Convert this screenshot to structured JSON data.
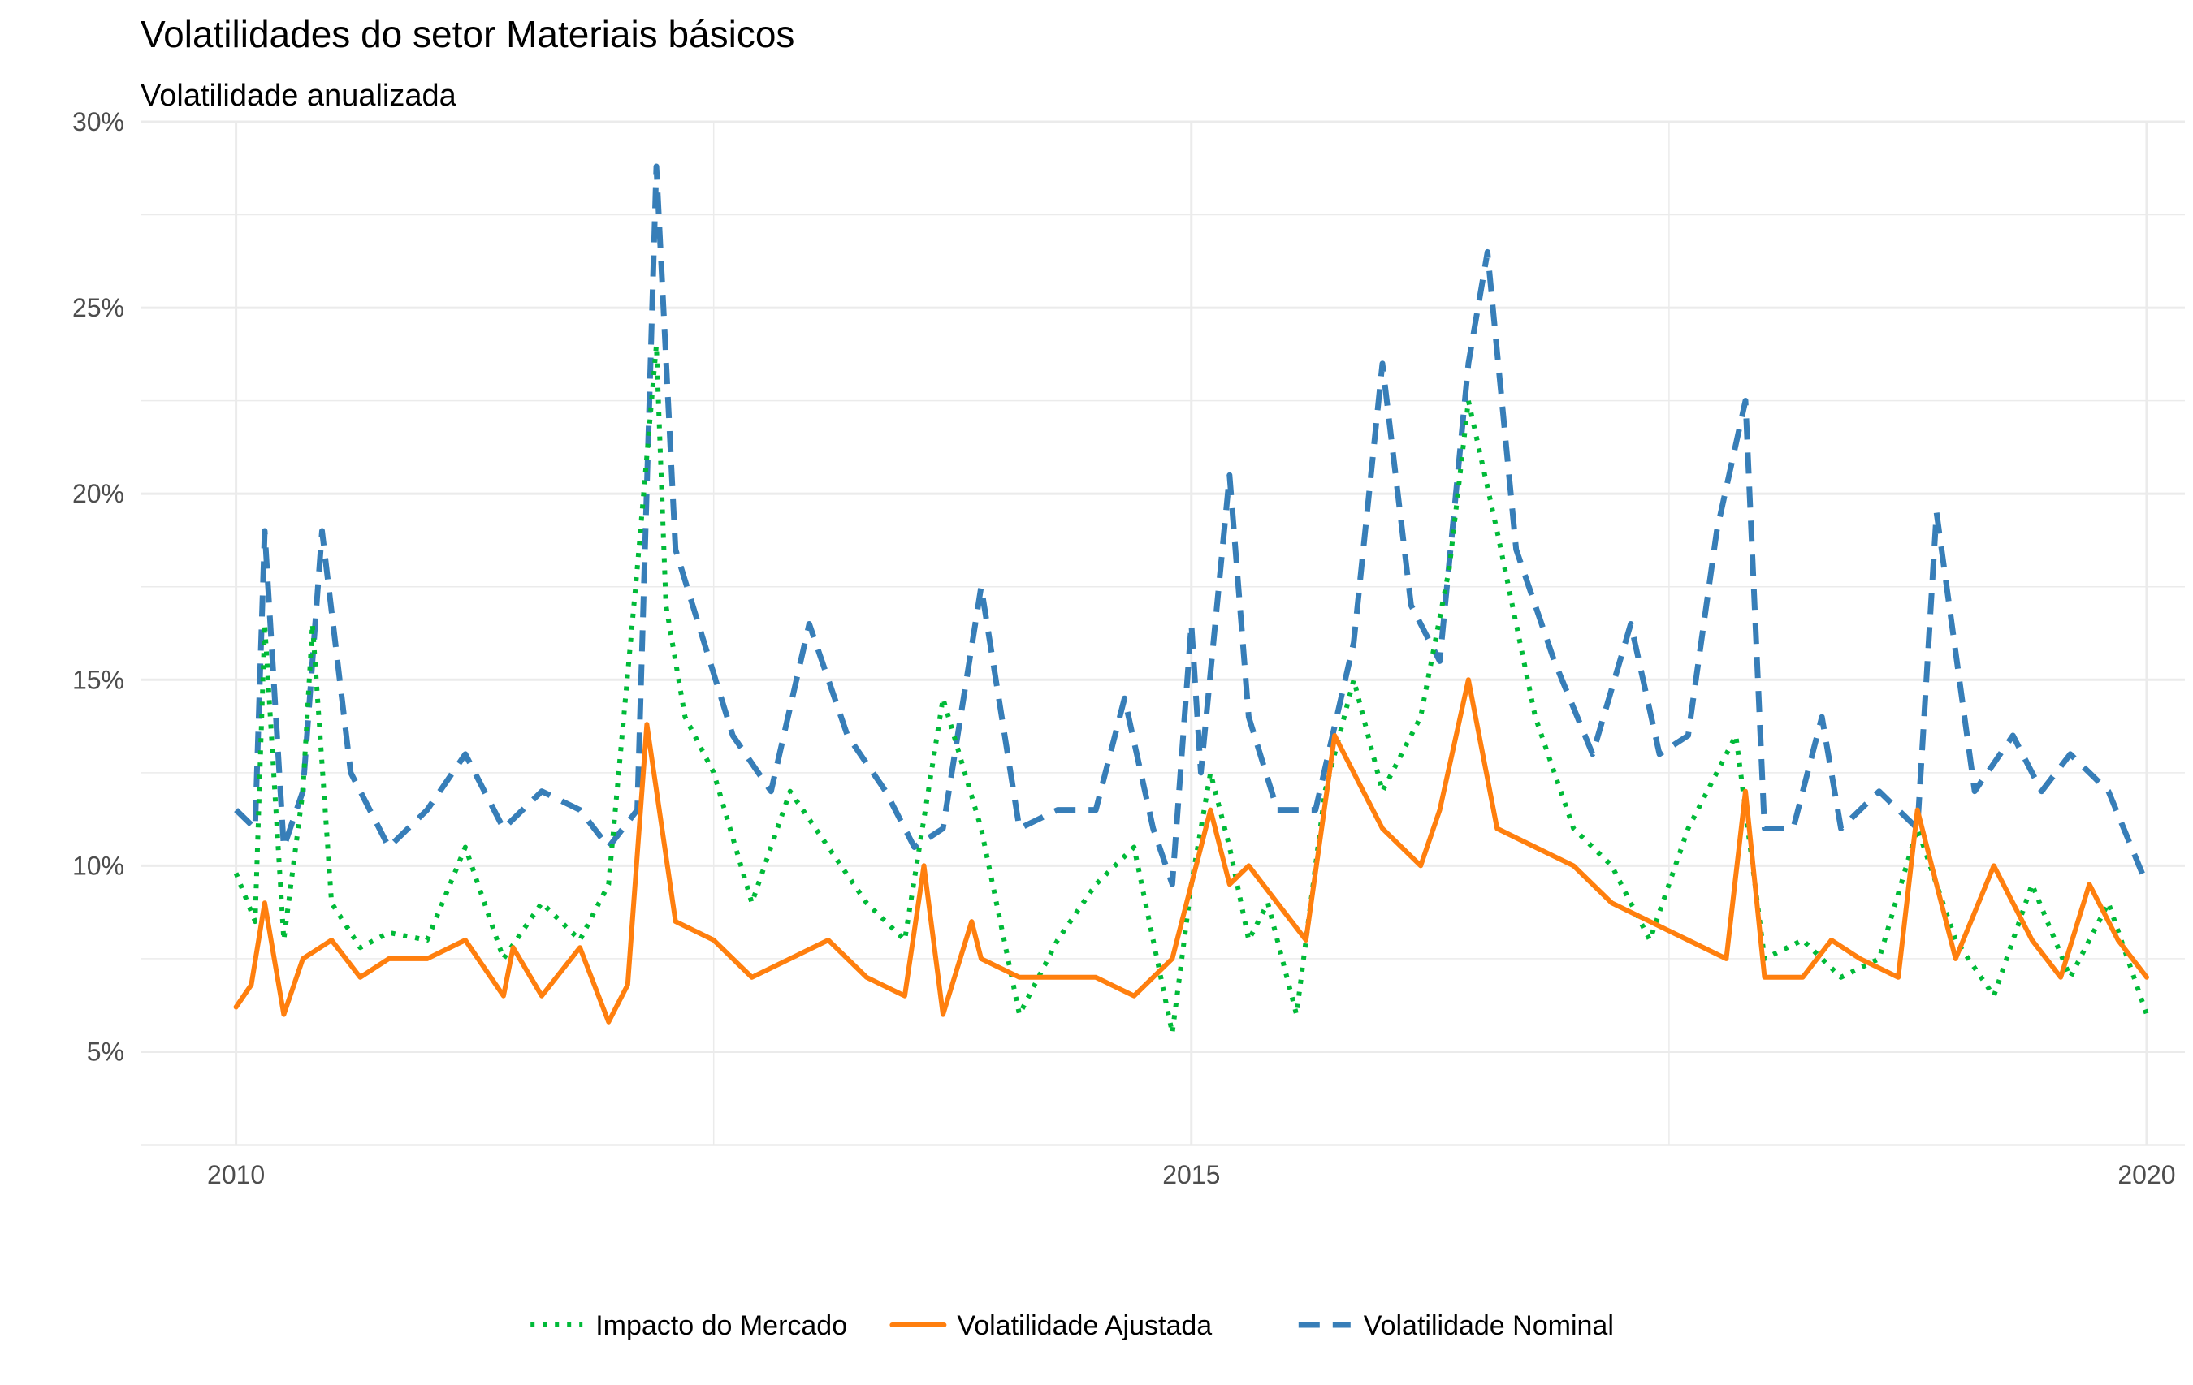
{
  "chart_data": {
    "type": "line",
    "title": "Volatilidades do setor Materiais básicos",
    "subtitle": "Volatilidade anualizada",
    "xlabel": "",
    "ylabel": "",
    "x_ticks": [
      "2010",
      "2015",
      "2020"
    ],
    "x_tick_values": [
      2010,
      2015,
      2020
    ],
    "xlim": [
      2009.5,
      2020.2
    ],
    "y_ticks": [
      "5%",
      "10%",
      "15%",
      "20%",
      "25%",
      "30%"
    ],
    "y_tick_values": [
      5,
      10,
      15,
      20,
      25,
      30
    ],
    "ylim": [
      2.5,
      30
    ],
    "grid": true,
    "legend_position": "bottom",
    "series": [
      {
        "name": "Impacto do Mercado",
        "color": "#00BA38",
        "style": "dotted",
        "x": [
          2010.0,
          2010.1,
          2010.15,
          2010.25,
          2010.35,
          2010.4,
          2010.5,
          2010.65,
          2010.8,
          2011.0,
          2011.2,
          2011.4,
          2011.6,
          2011.8,
          2011.95,
          2012.1,
          2012.2,
          2012.25,
          2012.35,
          2012.5,
          2012.7,
          2012.9,
          2013.1,
          2013.3,
          2013.5,
          2013.7,
          2013.9,
          2014.1,
          2014.3,
          2014.5,
          2014.7,
          2014.9,
          2015.0,
          2015.1,
          2015.2,
          2015.3,
          2015.4,
          2015.55,
          2015.7,
          2015.85,
          2016.0,
          2016.2,
          2016.35,
          2016.45,
          2016.6,
          2016.8,
          2017.0,
          2017.2,
          2017.4,
          2017.6,
          2017.85,
          2018.0,
          2018.2,
          2018.4,
          2018.6,
          2018.8,
          2019.0,
          2019.2,
          2019.4,
          2019.6,
          2019.8,
          2020.0
        ],
        "y": [
          9.8,
          8.5,
          16.5,
          8.0,
          12.0,
          16.5,
          9.0,
          7.8,
          8.2,
          8.0,
          10.5,
          7.5,
          9.0,
          8.0,
          9.5,
          18.0,
          24.0,
          17.0,
          14.0,
          12.5,
          9.0,
          12.0,
          10.5,
          9.0,
          8.0,
          14.5,
          11.0,
          6.0,
          8.0,
          9.5,
          10.5,
          5.5,
          9.5,
          12.5,
          10.5,
          8.0,
          9.0,
          6.0,
          12.0,
          15.0,
          12.0,
          14.0,
          18.0,
          22.5,
          19.0,
          14.0,
          11.0,
          10.0,
          8.0,
          11.0,
          13.5,
          7.5,
          8.0,
          7.0,
          7.5,
          11.0,
          8.0,
          6.5,
          9.5,
          7.0,
          9.0,
          6.0
        ]
      },
      {
        "name": "Volatilidade Ajustada",
        "color": "#FF7F0E",
        "style": "solid",
        "x": [
          2010.0,
          2010.08,
          2010.15,
          2010.25,
          2010.35,
          2010.5,
          2010.65,
          2010.8,
          2011.0,
          2011.2,
          2011.4,
          2011.45,
          2011.6,
          2011.8,
          2011.95,
          2012.05,
          2012.15,
          2012.3,
          2012.5,
          2012.7,
          2012.9,
          2013.1,
          2013.3,
          2013.5,
          2013.6,
          2013.7,
          2013.85,
          2013.9,
          2014.1,
          2014.3,
          2014.5,
          2014.7,
          2014.9,
          2015.0,
          2015.1,
          2015.2,
          2015.3,
          2015.45,
          2015.6,
          2015.75,
          2015.9,
          2016.0,
          2016.2,
          2016.3,
          2016.45,
          2016.6,
          2016.8,
          2017.0,
          2017.2,
          2017.4,
          2017.6,
          2017.8,
          2017.9,
          2018.0,
          2018.2,
          2018.35,
          2018.5,
          2018.7,
          2018.8,
          2019.0,
          2019.2,
          2019.4,
          2019.55,
          2019.7,
          2019.85,
          2020.0
        ],
        "y": [
          6.2,
          6.8,
          9.0,
          6.0,
          7.5,
          8.0,
          7.0,
          7.5,
          7.5,
          8.0,
          6.5,
          7.8,
          6.5,
          7.8,
          5.8,
          6.8,
          13.8,
          8.5,
          8.0,
          7.0,
          7.5,
          8.0,
          7.0,
          6.5,
          10.0,
          6.0,
          8.5,
          7.5,
          7.0,
          7.0,
          7.0,
          6.5,
          7.5,
          9.5,
          11.5,
          9.5,
          10.0,
          9.0,
          8.0,
          13.5,
          12.0,
          11.0,
          10.0,
          11.5,
          15.0,
          11.0,
          10.5,
          10.0,
          9.0,
          8.5,
          8.0,
          7.5,
          12.0,
          7.0,
          7.0,
          8.0,
          7.5,
          7.0,
          11.5,
          7.5,
          10.0,
          8.0,
          7.0,
          9.5,
          8.0,
          7.0
        ]
      },
      {
        "name": "Volatilidade Nominal",
        "color": "#377EB8",
        "style": "dashed",
        "x": [
          2010.0,
          2010.1,
          2010.15,
          2010.25,
          2010.35,
          2010.45,
          2010.6,
          2010.8,
          2011.0,
          2011.2,
          2011.4,
          2011.6,
          2011.8,
          2011.95,
          2012.1,
          2012.2,
          2012.3,
          2012.45,
          2012.6,
          2012.8,
          2013.0,
          2013.2,
          2013.4,
          2013.55,
          2013.7,
          2013.9,
          2014.1,
          2014.3,
          2014.5,
          2014.65,
          2014.8,
          2014.9,
          2015.0,
          2015.05,
          2015.2,
          2015.3,
          2015.45,
          2015.65,
          2015.85,
          2016.0,
          2016.15,
          2016.3,
          2016.45,
          2016.55,
          2016.7,
          2016.9,
          2017.1,
          2017.3,
          2017.45,
          2017.6,
          2017.75,
          2017.9,
          2018.0,
          2018.15,
          2018.3,
          2018.4,
          2018.6,
          2018.8,
          2018.9,
          2019.1,
          2019.3,
          2019.45,
          2019.6,
          2019.8,
          2020.0
        ],
        "y": [
          11.5,
          11.0,
          19.0,
          10.5,
          12.0,
          19.0,
          12.5,
          10.5,
          11.5,
          13.0,
          11.0,
          12.0,
          11.5,
          10.5,
          11.5,
          28.8,
          18.5,
          16.0,
          13.5,
          12.0,
          16.5,
          13.5,
          12.0,
          10.5,
          11.0,
          17.5,
          11.0,
          11.5,
          11.5,
          14.5,
          11.0,
          9.5,
          16.5,
          12.5,
          20.5,
          14.0,
          11.5,
          11.5,
          16.0,
          23.5,
          17.0,
          15.5,
          23.5,
          26.5,
          18.5,
          15.5,
          13.0,
          16.5,
          13.0,
          13.5,
          19.0,
          22.5,
          11.0,
          11.0,
          14.0,
          11.0,
          12.0,
          11.0,
          19.5,
          12.0,
          13.5,
          12.0,
          13.0,
          12.0,
          9.5
        ]
      }
    ]
  }
}
